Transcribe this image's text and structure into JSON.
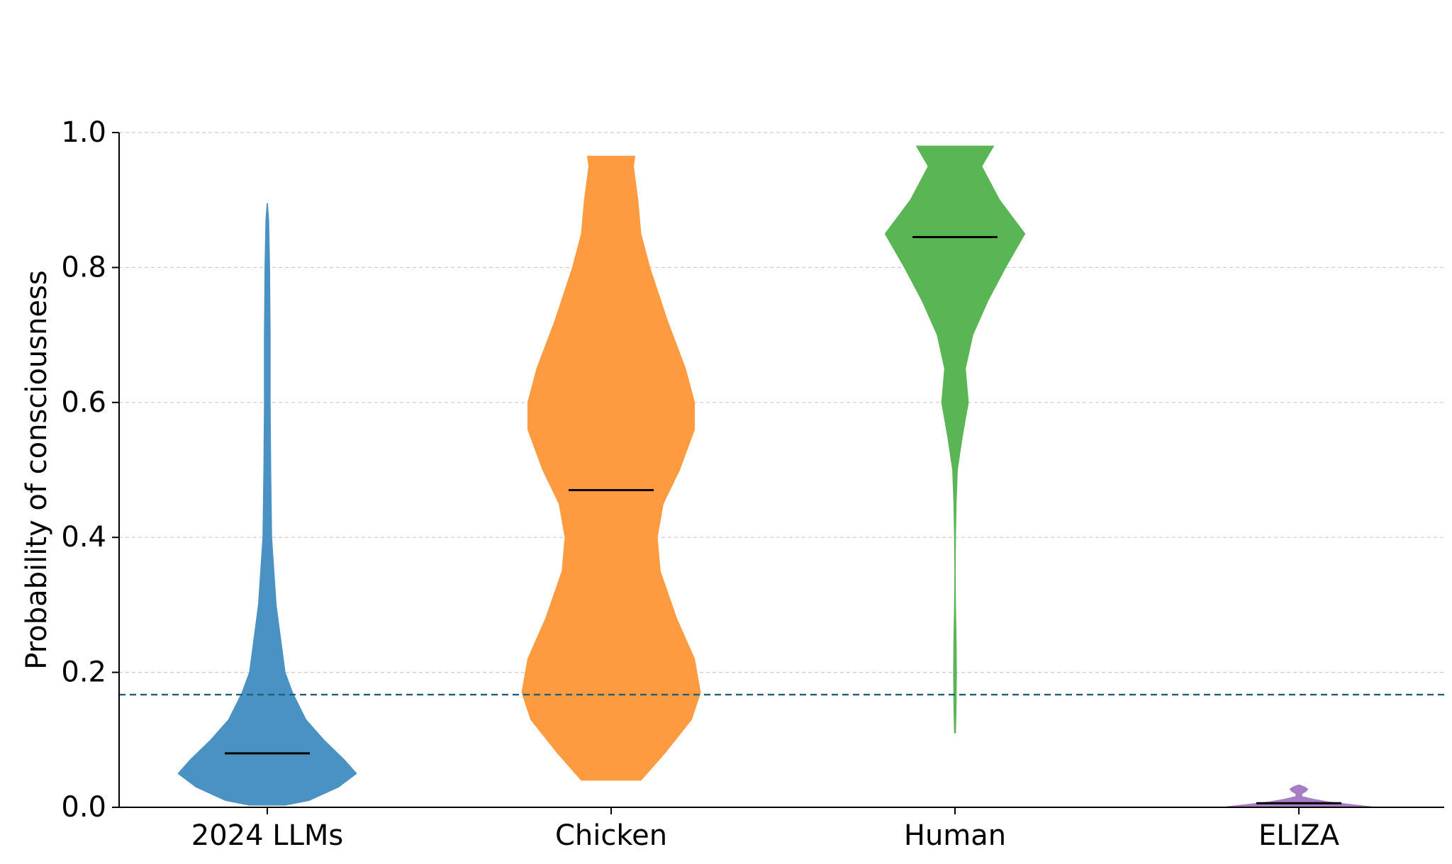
{
  "chart_data": {
    "type": "violin",
    "title": "",
    "xlabel": "",
    "ylabel": "Probability of consciousness",
    "ylim": [
      0,
      1
    ],
    "yticks": [
      "0.0",
      "0.2",
      "0.4",
      "0.6",
      "0.8",
      "1.0"
    ],
    "grid": "horizontal-dashed",
    "reference_line": {
      "y": 0.167,
      "style": "dashed",
      "color": "#1f5f7a"
    },
    "categories": [
      "2024 LLMs",
      "Chicken",
      "Human",
      "ELIZA"
    ],
    "series": [
      {
        "category": "2024 LLMs",
        "color": "#4a92c4",
        "median": 0.08,
        "min": 0.003,
        "max": 0.895,
        "profile": [
          [
            0.003,
            0.06
          ],
          [
            0.01,
            0.14
          ],
          [
            0.03,
            0.24
          ],
          [
            0.05,
            0.3
          ],
          [
            0.07,
            0.26
          ],
          [
            0.1,
            0.19
          ],
          [
            0.13,
            0.13
          ],
          [
            0.17,
            0.085
          ],
          [
            0.2,
            0.06
          ],
          [
            0.25,
            0.045
          ],
          [
            0.3,
            0.03
          ],
          [
            0.4,
            0.015
          ],
          [
            0.5,
            0.012
          ],
          [
            0.6,
            0.01
          ],
          [
            0.7,
            0.01
          ],
          [
            0.8,
            0.008
          ],
          [
            0.87,
            0.005
          ],
          [
            0.895,
            0.001
          ]
        ]
      },
      {
        "category": "Chicken",
        "color": "#fe9a40",
        "median": 0.47,
        "min": 0.04,
        "max": 0.965,
        "profile": [
          [
            0.04,
            0.1
          ],
          [
            0.08,
            0.18
          ],
          [
            0.13,
            0.27
          ],
          [
            0.17,
            0.3
          ],
          [
            0.22,
            0.28
          ],
          [
            0.28,
            0.22
          ],
          [
            0.35,
            0.165
          ],
          [
            0.4,
            0.155
          ],
          [
            0.45,
            0.175
          ],
          [
            0.5,
            0.23
          ],
          [
            0.56,
            0.28
          ],
          [
            0.6,
            0.28
          ],
          [
            0.65,
            0.25
          ],
          [
            0.72,
            0.19
          ],
          [
            0.8,
            0.13
          ],
          [
            0.85,
            0.1
          ],
          [
            0.9,
            0.09
          ],
          [
            0.95,
            0.075
          ],
          [
            0.965,
            0.08
          ]
        ]
      },
      {
        "category": "Human",
        "color": "#5ab555",
        "median": 0.845,
        "min": 0.11,
        "max": 0.98,
        "profile": [
          [
            0.11,
            0.002
          ],
          [
            0.15,
            0.004
          ],
          [
            0.2,
            0.005
          ],
          [
            0.25,
            0.004
          ],
          [
            0.3,
            0.002
          ],
          [
            0.35,
            0.001
          ],
          [
            0.4,
            0.002
          ],
          [
            0.45,
            0.004
          ],
          [
            0.5,
            0.008
          ],
          [
            0.55,
            0.025
          ],
          [
            0.6,
            0.045
          ],
          [
            0.65,
            0.035
          ],
          [
            0.7,
            0.06
          ],
          [
            0.75,
            0.11
          ],
          [
            0.8,
            0.17
          ],
          [
            0.85,
            0.235
          ],
          [
            0.9,
            0.15
          ],
          [
            0.95,
            0.09
          ],
          [
            0.98,
            0.13
          ]
        ]
      },
      {
        "category": "ELIZA",
        "color": "#a77ec5",
        "median": 0.006,
        "min": 0.001,
        "max": 0.033,
        "profile": [
          [
            0.001,
            0.24
          ],
          [
            0.004,
            0.18
          ],
          [
            0.008,
            0.1
          ],
          [
            0.012,
            0.05
          ],
          [
            0.016,
            0.01
          ],
          [
            0.02,
            0.01
          ],
          [
            0.024,
            0.025
          ],
          [
            0.027,
            0.03
          ],
          [
            0.03,
            0.02
          ],
          [
            0.033,
            0.003
          ]
        ]
      }
    ]
  }
}
